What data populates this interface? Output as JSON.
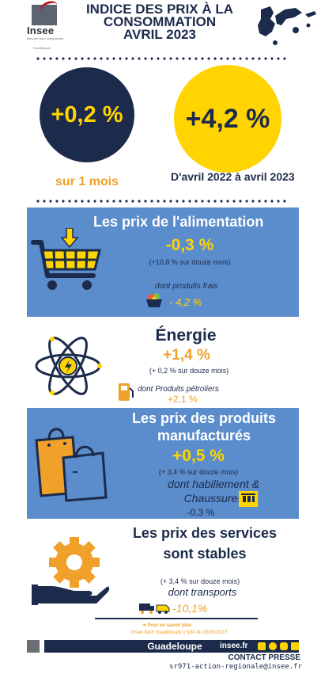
{
  "logo": {
    "name": "Insee",
    "subtitle": "Mesurer pour comprendre",
    "region": "Guadeloupe"
  },
  "title": {
    "line1": "INDICE DES PRIX À LA",
    "line2": "CONSOMMATION",
    "line3": "AVRIL 2023"
  },
  "kpi_month": {
    "value": "+0,2 %",
    "caption": "sur 1 mois"
  },
  "kpi_year": {
    "value": "+4,2 %",
    "caption": "D'avril 2022 à avril 2023"
  },
  "alimentation": {
    "heading": "Les prix de l'alimentation",
    "value": "-0,3 %",
    "note": "(+10,8 % sur douze mois)",
    "sub_label": "dont produits frais",
    "sub_value": "- 4,2 %"
  },
  "energie": {
    "heading": "Énergie",
    "value": "+1,4 %",
    "note": "(+ 0,2 % sur douze mois)",
    "sub_label": "dont Produits pétroliers",
    "sub_value": "+2,1 %"
  },
  "manufactures": {
    "heading_line1": "Les prix des produits",
    "heading_line2": "manufacturés",
    "value": "+0,5 %",
    "note": "(+ 3,4 % sur douze mois)",
    "sub_label_line1": "dont habillement &",
    "sub_label_line2": "Chaussures",
    "sub_value": "-0,3 %"
  },
  "services": {
    "heading_line1": "Les prix des services",
    "heading_line2": "sont stables",
    "note": "(+ 3,4 % sur douze mois)",
    "sub_label": "dont transports",
    "sub_value": "-10,1%"
  },
  "more_info": {
    "label": "Pour en savoir plus",
    "ref": "Insee flash Guadeloupe n°184 du 26/05/2023"
  },
  "footer": {
    "region": "Guadeloupe",
    "site": "insee.fr",
    "contact_label": "CONTACT PRESSE",
    "email": "sr971-action-regionale@insee.fr"
  },
  "colors": {
    "navy": "#1c2b4b",
    "yellow": "#ffd400",
    "blue": "#5b8ccc",
    "orange": "#f0a12a"
  }
}
